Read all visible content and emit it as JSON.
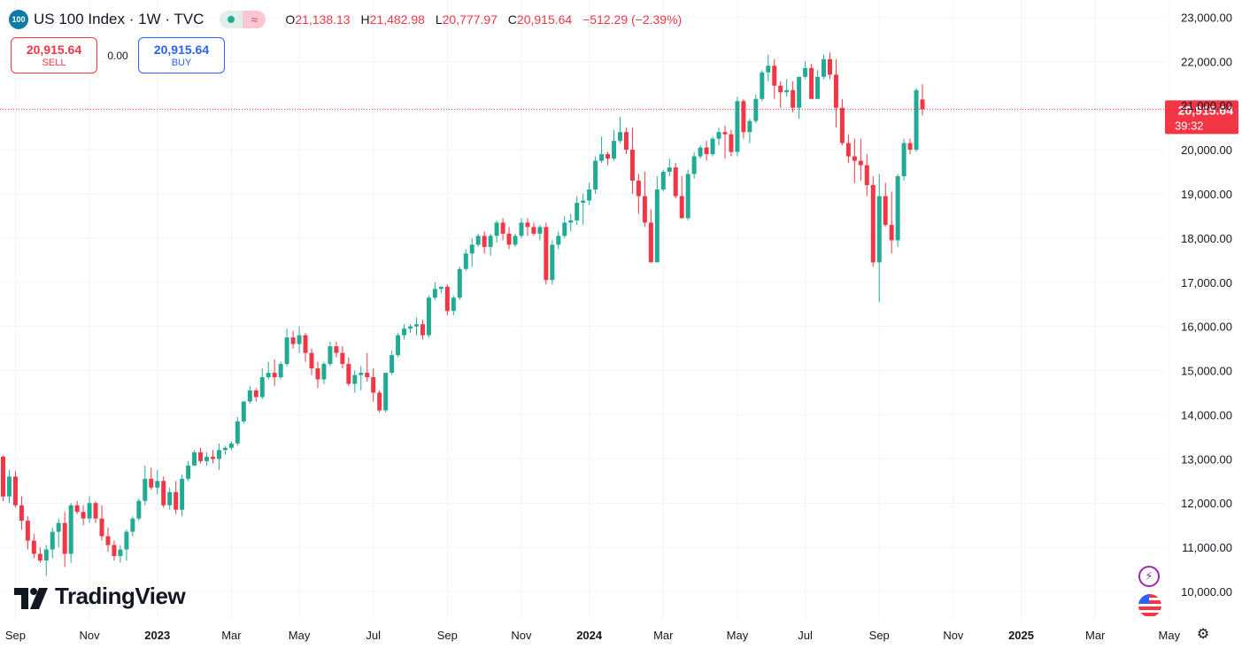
{
  "header": {
    "symbol_badge": "100",
    "title": "US 100 Index · 1W · TVC",
    "ohlc": {
      "o_label": "O",
      "o_value": "21,138.13",
      "h_label": "H",
      "h_value": "21,482.98",
      "l_label": "L",
      "l_value": "20,777.97",
      "c_label": "C",
      "c_value": "20,915.64",
      "change": "−512.29 (−2.39%)"
    }
  },
  "trade": {
    "sell_price": "20,915.64",
    "sell_label": "SELL",
    "spread": "0.00",
    "buy_price": "20,915.64",
    "buy_label": "BUY"
  },
  "logo": {
    "text": "TradingView"
  },
  "price_label": {
    "value": "20,915.64",
    "countdown": "39:32"
  },
  "colors": {
    "up": "#22ab94",
    "down": "#f23645",
    "grid": "#f0f3fa",
    "axis_text": "#131722"
  },
  "icons": [
    "lightning-icon",
    "us-flag-icon",
    "settings-gear-icon"
  ],
  "chart_data": {
    "type": "candlestick",
    "interval": "1W",
    "y_axis": {
      "min": 9400,
      "max": 23400,
      "position": "right",
      "ticks": [
        "10,000.00",
        "11,000.00",
        "12,000.00",
        "13,000.00",
        "14,000.00",
        "15,000.00",
        "16,000.00",
        "17,000.00",
        "18,000.00",
        "19,000.00",
        "20,000.00",
        "21,000.00",
        "22,000.00",
        "23,000.00"
      ]
    },
    "x_axis": {
      "labels": [
        {
          "text": "Sep",
          "bar": 2,
          "bold": false
        },
        {
          "text": "Nov",
          "bar": 14,
          "bold": false
        },
        {
          "text": "2023",
          "bar": 25,
          "bold": true
        },
        {
          "text": "Mar",
          "bar": 37,
          "bold": false
        },
        {
          "text": "May",
          "bar": 48,
          "bold": false
        },
        {
          "text": "Jul",
          "bar": 60,
          "bold": false
        },
        {
          "text": "Sep",
          "bar": 72,
          "bold": false
        },
        {
          "text": "Nov",
          "bar": 84,
          "bold": false
        },
        {
          "text": "2024",
          "bar": 95,
          "bold": true
        },
        {
          "text": "Mar",
          "bar": 107,
          "bold": false
        },
        {
          "text": "May",
          "bar": 119,
          "bold": false
        },
        {
          "text": "Jul",
          "bar": 130,
          "bold": false
        },
        {
          "text": "Sep",
          "bar": 142,
          "bold": false
        },
        {
          "text": "Nov",
          "bar": 154,
          "bold": false
        },
        {
          "text": "2025",
          "bar": 165,
          "bold": true
        },
        {
          "text": "Mar",
          "bar": 177,
          "bold": false
        },
        {
          "text": "May",
          "bar": 189,
          "bold": false
        }
      ]
    },
    "last_price": 20915.64,
    "candles": [
      [
        13050,
        13080,
        12050,
        12150
      ],
      [
        12150,
        12750,
        12000,
        12600
      ],
      [
        12600,
        12720,
        11900,
        11950
      ],
      [
        11950,
        12150,
        11400,
        11600
      ],
      [
        11600,
        11700,
        10950,
        11150
      ],
      [
        11150,
        11300,
        10750,
        10850
      ],
      [
        10850,
        11000,
        10650,
        10700
      ],
      [
        10700,
        11050,
        10350,
        10950
      ],
      [
        10950,
        11450,
        10750,
        11350
      ],
      [
        11350,
        11650,
        11000,
        11550
      ],
      [
        11550,
        11800,
        10550,
        10850
      ],
      [
        10850,
        12000,
        10650,
        11950
      ],
      [
        11950,
        12050,
        11750,
        11800
      ],
      [
        11800,
        11950,
        11500,
        11650
      ],
      [
        11650,
        12150,
        11550,
        12000
      ],
      [
        12000,
        12050,
        11550,
        11650
      ],
      [
        11650,
        11950,
        11150,
        11250
      ],
      [
        11250,
        11450,
        10900,
        11050
      ],
      [
        11050,
        11150,
        10700,
        10800
      ],
      [
        10800,
        11050,
        10650,
        10950
      ],
      [
        10950,
        11400,
        10700,
        11350
      ],
      [
        11350,
        11700,
        11250,
        11650
      ],
      [
        11650,
        12100,
        11600,
        12050
      ],
      [
        12050,
        12850,
        11950,
        12550
      ],
      [
        12550,
        12800,
        12300,
        12350
      ],
      [
        12350,
        12750,
        12200,
        12500
      ],
      [
        12500,
        12600,
        11900,
        11950
      ],
      [
        11950,
        12350,
        11850,
        12250
      ],
      [
        12250,
        12500,
        11750,
        11850
      ],
      [
        11850,
        12650,
        11700,
        12550
      ],
      [
        12550,
        12950,
        12500,
        12850
      ],
      [
        12850,
        13200,
        12850,
        13150
      ],
      [
        13150,
        13250,
        12900,
        12950
      ],
      [
        12950,
        13150,
        12850,
        13050
      ],
      [
        13050,
        13200,
        12900,
        13000
      ],
      [
        13000,
        13350,
        12750,
        13200
      ],
      [
        13200,
        13300,
        13100,
        13250
      ],
      [
        13250,
        13400,
        13200,
        13350
      ],
      [
        13350,
        13950,
        13300,
        13850
      ],
      [
        13850,
        14300,
        13800,
        14300
      ],
      [
        14300,
        14650,
        14250,
        14550
      ],
      [
        14550,
        14600,
        14300,
        14400
      ],
      [
        14400,
        15050,
        14350,
        14850
      ],
      [
        14850,
        15200,
        14800,
        14950
      ],
      [
        14950,
        15250,
        14650,
        14850
      ],
      [
        14850,
        15200,
        14800,
        15150
      ],
      [
        15150,
        15950,
        15100,
        15750
      ],
      [
        15750,
        15900,
        15500,
        15600
      ],
      [
        15600,
        16000,
        15400,
        15800
      ],
      [
        15800,
        15850,
        15200,
        15400
      ],
      [
        15400,
        15500,
        14900,
        15050
      ],
      [
        15050,
        15200,
        14600,
        14800
      ],
      [
        14800,
        15200,
        14700,
        15150
      ],
      [
        15150,
        15650,
        15100,
        15550
      ],
      [
        15550,
        15650,
        15300,
        15400
      ],
      [
        15400,
        15550,
        15050,
        15150
      ],
      [
        15150,
        15300,
        14650,
        14700
      ],
      [
        14700,
        15000,
        14500,
        14900
      ],
      [
        14900,
        15100,
        14550,
        14950
      ],
      [
        14950,
        15400,
        14750,
        14850
      ],
      [
        14850,
        15050,
        14300,
        14500
      ],
      [
        14500,
        14550,
        14050,
        14100
      ],
      [
        14100,
        14950,
        14050,
        14950
      ],
      [
        14950,
        15450,
        14900,
        15350
      ],
      [
        15350,
        15850,
        15300,
        15800
      ],
      [
        15800,
        16050,
        15700,
        15950
      ],
      [
        15950,
        16050,
        15850,
        16000
      ],
      [
        16000,
        16200,
        15800,
        16050
      ],
      [
        16050,
        16150,
        15700,
        15800
      ],
      [
        15800,
        16700,
        15750,
        16650
      ],
      [
        16650,
        17000,
        16600,
        16850
      ],
      [
        16850,
        16900,
        16750,
        16900
      ],
      [
        16900,
        16950,
        16250,
        16350
      ],
      [
        16350,
        16700,
        16250,
        16650
      ],
      [
        16650,
        17350,
        16600,
        17300
      ],
      [
        17300,
        17750,
        17250,
        17650
      ],
      [
        17650,
        18000,
        17350,
        17850
      ],
      [
        17850,
        18100,
        17800,
        18050
      ],
      [
        18050,
        18150,
        17650,
        17800
      ],
      [
        17800,
        18100,
        17600,
        18050
      ],
      [
        18050,
        18400,
        17900,
        18350
      ],
      [
        18350,
        18450,
        17950,
        18100
      ],
      [
        18100,
        18250,
        17750,
        17850
      ],
      [
        17850,
        18100,
        17800,
        18050
      ],
      [
        18050,
        18450,
        18000,
        18350
      ],
      [
        18350,
        18450,
        18050,
        18250
      ],
      [
        18250,
        18350,
        18050,
        18100
      ],
      [
        18100,
        18300,
        17950,
        18250
      ],
      [
        18250,
        18350,
        16950,
        17050
      ],
      [
        17050,
        17950,
        16950,
        17850
      ],
      [
        17850,
        18150,
        17750,
        18050
      ],
      [
        18050,
        18500,
        18000,
        18350
      ],
      [
        18350,
        18550,
        18150,
        18400
      ],
      [
        18400,
        18950,
        18300,
        18800
      ],
      [
        18800,
        19000,
        18300,
        18850
      ],
      [
        18850,
        19250,
        18750,
        19100
      ],
      [
        19100,
        19850,
        19000,
        19750
      ],
      [
        19750,
        20300,
        19700,
        19900
      ],
      [
        19900,
        19950,
        19650,
        19800
      ],
      [
        19800,
        20450,
        19750,
        20200
      ],
      [
        20200,
        20750,
        20150,
        20400
      ],
      [
        20400,
        20500,
        19900,
        20000
      ],
      [
        20000,
        20500,
        19000,
        19300
      ],
      [
        19300,
        19450,
        18550,
        18950
      ],
      [
        18950,
        19500,
        18250,
        18350
      ],
      [
        18350,
        18650,
        17450,
        17450
      ],
      [
        17450,
        19400,
        17450,
        19100
      ],
      [
        19100,
        19550,
        19050,
        19500
      ],
      [
        19500,
        19800,
        19400,
        19600
      ],
      [
        19600,
        19700,
        18900,
        18950
      ],
      [
        18950,
        19400,
        18450,
        18450
      ],
      [
        18450,
        19550,
        18400,
        19450
      ],
      [
        19450,
        19950,
        19350,
        19850
      ],
      [
        19850,
        20100,
        19800,
        20050
      ],
      [
        20050,
        20200,
        19750,
        19900
      ],
      [
        19900,
        20300,
        19850,
        20250
      ],
      [
        20250,
        20500,
        20100,
        20400
      ],
      [
        20400,
        20550,
        19800,
        20350
      ],
      [
        20350,
        20450,
        19850,
        19950
      ],
      [
        19950,
        21200,
        19850,
        21100
      ],
      [
        21100,
        21150,
        20250,
        20400
      ],
      [
        20400,
        20700,
        20150,
        20650
      ],
      [
        20650,
        21250,
        20600,
        21150
      ],
      [
        21150,
        21800,
        21100,
        21750
      ],
      [
        21750,
        22150,
        21550,
        21900
      ],
      [
        21900,
        22050,
        21150,
        21450
      ],
      [
        21450,
        21550,
        20950,
        21300
      ],
      [
        21300,
        21600,
        21200,
        21350
      ],
      [
        21350,
        21550,
        20850,
        20950
      ],
      [
        20950,
        21650,
        20700,
        21650
      ],
      [
        21650,
        22000,
        21600,
        21850
      ],
      [
        21850,
        21950,
        21200,
        21150
      ],
      [
        21150,
        21800,
        21150,
        21650
      ],
      [
        21650,
        22150,
        21600,
        22050
      ],
      [
        22050,
        22200,
        21600,
        21700
      ],
      [
        21700,
        22050,
        20500,
        20950
      ],
      [
        20950,
        21150,
        20100,
        20150
      ],
      [
        20150,
        20350,
        19700,
        19850
      ],
      [
        19850,
        20250,
        19250,
        19750
      ],
      [
        19750,
        20250,
        19300,
        19650
      ],
      [
        19650,
        19900,
        18950,
        19200
      ],
      [
        19200,
        19400,
        17350,
        17450
      ],
      [
        17450,
        19450,
        16550,
        18950
      ],
      [
        18950,
        19250,
        18250,
        18300
      ],
      [
        18300,
        19050,
        17650,
        17950
      ],
      [
        17950,
        19450,
        17800,
        19400
      ],
      [
        19400,
        20250,
        19300,
        20150
      ],
      [
        20150,
        20250,
        19900,
        20000
      ],
      [
        20000,
        21400,
        19950,
        21350
      ],
      [
        21138.13,
        21482.98,
        20777.97,
        20915.64
      ]
    ]
  }
}
